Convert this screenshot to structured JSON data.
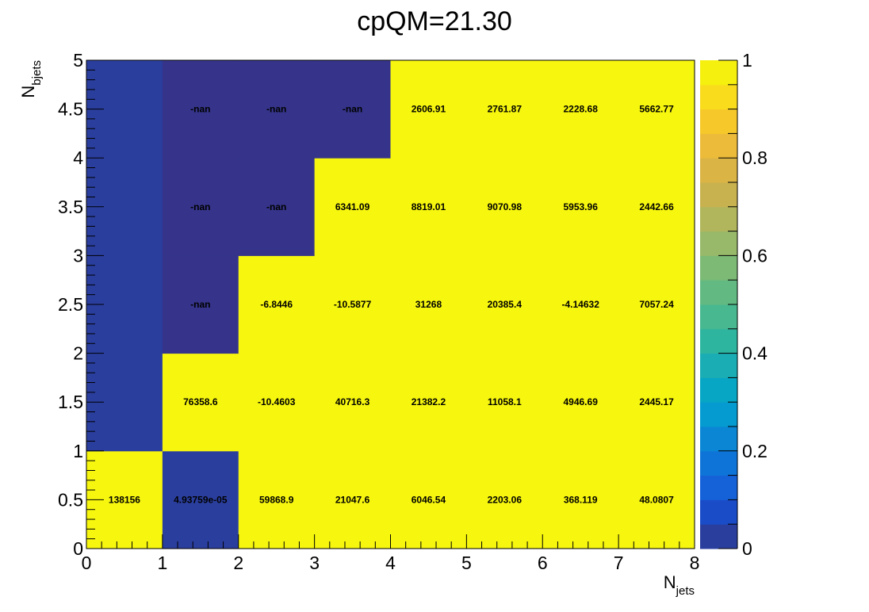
{
  "chart_data": {
    "type": "heatmap",
    "title": "cpQM=21.30",
    "xlabel": {
      "main": "N",
      "sub": "jets"
    },
    "ylabel": {
      "main": "N",
      "sub": "bjets"
    },
    "xlim": [
      0,
      8
    ],
    "ylim": [
      0,
      5
    ],
    "x_ticks": [
      "0",
      "1",
      "2",
      "3",
      "4",
      "5",
      "6",
      "7",
      "8"
    ],
    "y_ticks": [
      "0",
      "0.5",
      "1",
      "1.5",
      "2",
      "2.5",
      "3",
      "3.5",
      "4",
      "4.5",
      "5"
    ],
    "x_bins": [
      0,
      1,
      2,
      3,
      4,
      5,
      6,
      7,
      8
    ],
    "y_bins": [
      0,
      1,
      2,
      3,
      4,
      5
    ],
    "colorbar": {
      "range": [
        0,
        1
      ],
      "ticks": [
        "0",
        "0.2",
        "0.4",
        "0.6",
        "0.8",
        "1"
      ],
      "palette": [
        "#2a3e9e",
        "#1a4cc8",
        "#1561d8",
        "#0f74d8",
        "#0a86d4",
        "#059ad0",
        "#06a6c4",
        "#1aadb4",
        "#2eb5a0",
        "#48b890",
        "#62ba82",
        "#7cba76",
        "#98b96a",
        "#b1b65c",
        "#c8b250",
        "#dbb446",
        "#ecbb3a",
        "#f7c82a",
        "#f9dc1c",
        "#f6f00e"
      ]
    },
    "fill_colors": {
      "z1": "#f6f60e",
      "z0": "#2a3e9e",
      "nan": "#35348a"
    },
    "cells": [
      {
        "ix": 0,
        "iy": 0,
        "z": 1,
        "label": "138156"
      },
      {
        "ix": 1,
        "iy": 0,
        "z": 0,
        "label": "4.93759e-05"
      },
      {
        "ix": 2,
        "iy": 0,
        "z": 1,
        "label": "59868.9"
      },
      {
        "ix": 3,
        "iy": 0,
        "z": 1,
        "label": "21047.6"
      },
      {
        "ix": 4,
        "iy": 0,
        "z": 1,
        "label": "6046.54"
      },
      {
        "ix": 5,
        "iy": 0,
        "z": 1,
        "label": "2203.06"
      },
      {
        "ix": 6,
        "iy": 0,
        "z": 1,
        "label": "368.119"
      },
      {
        "ix": 7,
        "iy": 0,
        "z": 1,
        "label": "48.0807"
      },
      {
        "ix": 0,
        "iy": 1,
        "z": 0,
        "label": ""
      },
      {
        "ix": 1,
        "iy": 1,
        "z": 1,
        "label": "76358.6"
      },
      {
        "ix": 2,
        "iy": 1,
        "z": 1,
        "label": "-10.4603"
      },
      {
        "ix": 3,
        "iy": 1,
        "z": 1,
        "label": "40716.3"
      },
      {
        "ix": 4,
        "iy": 1,
        "z": 1,
        "label": "21382.2"
      },
      {
        "ix": 5,
        "iy": 1,
        "z": 1,
        "label": "11058.1"
      },
      {
        "ix": 6,
        "iy": 1,
        "z": 1,
        "label": "4946.69"
      },
      {
        "ix": 7,
        "iy": 1,
        "z": 1,
        "label": "2445.17"
      },
      {
        "ix": 0,
        "iy": 2,
        "z": 0,
        "label": ""
      },
      {
        "ix": 1,
        "iy": 2,
        "z": "nan",
        "label": "-nan"
      },
      {
        "ix": 2,
        "iy": 2,
        "z": 1,
        "label": "-6.8446"
      },
      {
        "ix": 3,
        "iy": 2,
        "z": 1,
        "label": "-10.5877"
      },
      {
        "ix": 4,
        "iy": 2,
        "z": 1,
        "label": "31268"
      },
      {
        "ix": 5,
        "iy": 2,
        "z": 1,
        "label": "20385.4"
      },
      {
        "ix": 6,
        "iy": 2,
        "z": 1,
        "label": "-4.14632"
      },
      {
        "ix": 7,
        "iy": 2,
        "z": 1,
        "label": "7057.24"
      },
      {
        "ix": 0,
        "iy": 3,
        "z": 0,
        "label": ""
      },
      {
        "ix": 1,
        "iy": 3,
        "z": "nan",
        "label": "-nan"
      },
      {
        "ix": 2,
        "iy": 3,
        "z": "nan",
        "label": "-nan"
      },
      {
        "ix": 3,
        "iy": 3,
        "z": 1,
        "label": "6341.09"
      },
      {
        "ix": 4,
        "iy": 3,
        "z": 1,
        "label": "8819.01"
      },
      {
        "ix": 5,
        "iy": 3,
        "z": 1,
        "label": "9070.98"
      },
      {
        "ix": 6,
        "iy": 3,
        "z": 1,
        "label": "5953.96"
      },
      {
        "ix": 7,
        "iy": 3,
        "z": 1,
        "label": "2442.66"
      },
      {
        "ix": 0,
        "iy": 4,
        "z": 0,
        "label": ""
      },
      {
        "ix": 1,
        "iy": 4,
        "z": "nan",
        "label": "-nan"
      },
      {
        "ix": 2,
        "iy": 4,
        "z": "nan",
        "label": "-nan"
      },
      {
        "ix": 3,
        "iy": 4,
        "z": "nan",
        "label": "-nan"
      },
      {
        "ix": 4,
        "iy": 4,
        "z": 1,
        "label": "2606.91"
      },
      {
        "ix": 5,
        "iy": 4,
        "z": 1,
        "label": "2761.87"
      },
      {
        "ix": 6,
        "iy": 4,
        "z": 1,
        "label": "2228.68"
      },
      {
        "ix": 7,
        "iy": 4,
        "z": 1,
        "label": "5662.77"
      }
    ]
  }
}
